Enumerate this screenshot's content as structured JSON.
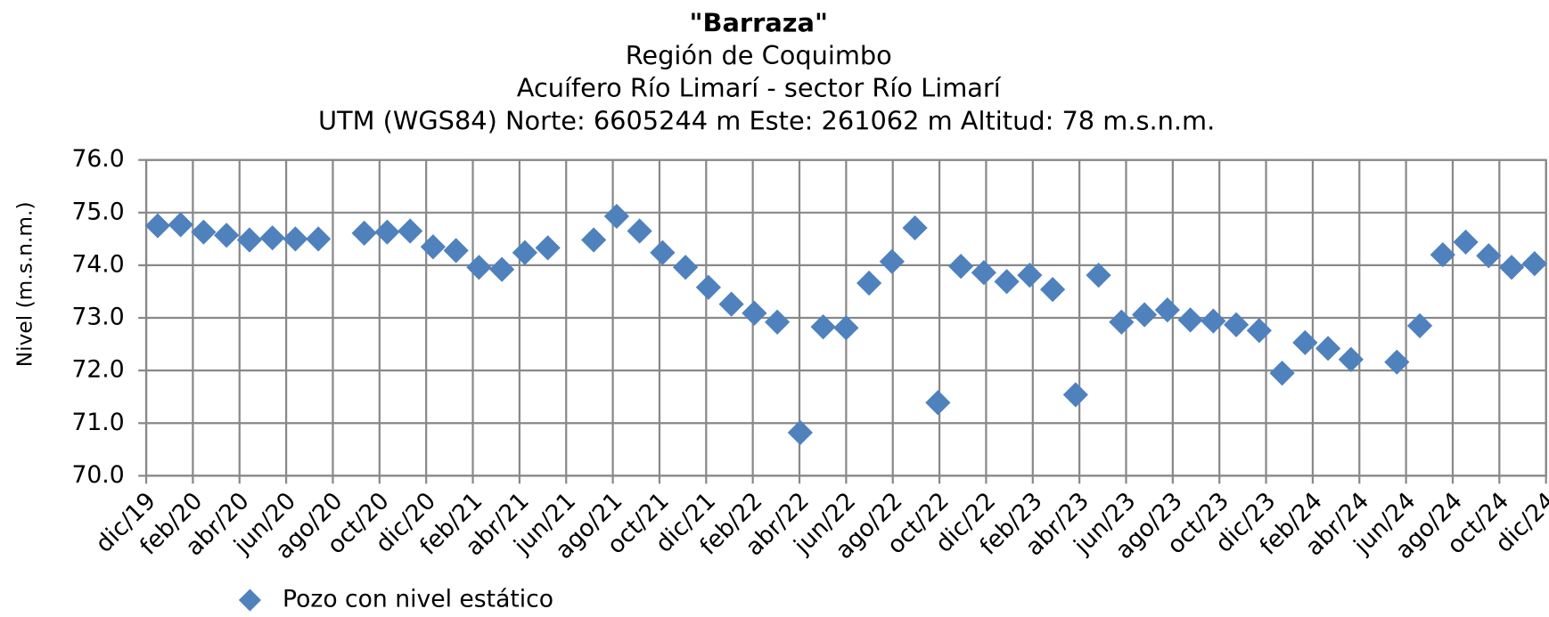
{
  "chart_data": {
    "type": "scatter",
    "title": "\"Barraza\"",
    "subtitles": [
      "Región de Coquimbo",
      "Acuífero Río Limarí - sector Río Limarí",
      "UTM (WGS84) Norte: 6605244 m   Este: 261062 m   Altitud: 78 m.s.n.m."
    ],
    "y_label": "Nivel (m.s.n.m.)",
    "categories": [
      "dic/19",
      null,
      "feb/20",
      null,
      "abr/20",
      null,
      "jun/20",
      null,
      "ago/20",
      null,
      "oct/20",
      null,
      "dic/20",
      null,
      "feb/21",
      null,
      "abr/21",
      null,
      "jun/21",
      null,
      "ago/21",
      null,
      "oct/21",
      null,
      "dic/21",
      null,
      "feb/22",
      null,
      "abr/22",
      null,
      "jun/22",
      null,
      "ago/22",
      null,
      "oct/22",
      null,
      "dic/22",
      null,
      "feb/23",
      null,
      "abr/23",
      null,
      "jun/23",
      null,
      "ago/23",
      null,
      "oct/23",
      null,
      "dic/23",
      null,
      "feb/24",
      null,
      "abr/24",
      null,
      "jun/24",
      null,
      "ago/24",
      null,
      "oct/24",
      null,
      "dic/24"
    ],
    "series": [
      {
        "name": "Pozo con nivel estático",
        "color": "#4f81bd",
        "values": [
          74.75,
          74.77,
          74.63,
          74.57,
          74.48,
          74.52,
          74.5,
          74.5,
          null,
          74.61,
          74.63,
          74.65,
          74.35,
          74.28,
          73.96,
          73.92,
          74.24,
          74.33,
          null,
          74.48,
          74.93,
          74.65,
          74.24,
          73.96,
          73.58,
          73.26,
          73.09,
          72.92,
          70.82,
          72.83,
          72.81,
          73.66,
          74.07,
          74.71,
          71.39,
          73.98,
          73.86,
          73.69,
          73.81,
          73.54,
          71.54,
          73.81,
          72.92,
          73.06,
          73.15,
          72.96,
          72.94,
          72.87,
          72.76,
          71.95,
          72.53,
          72.42,
          72.21,
          null,
          72.16,
          72.85,
          74.2,
          74.44,
          74.18,
          73.96,
          74.03
        ]
      }
    ],
    "ylim": [
      70,
      76
    ],
    "yticks": [
      {
        "value": 70,
        "label": "70.0"
      },
      {
        "value": 71,
        "label": "71.0"
      },
      {
        "value": 72,
        "label": "72.0"
      },
      {
        "value": 73,
        "label": "73.0"
      },
      {
        "value": 74,
        "label": "74.0"
      },
      {
        "value": 75,
        "label": "75.0"
      },
      {
        "value": 76,
        "label": "76.0"
      }
    ],
    "grid": true,
    "legend": "bottom-left"
  }
}
